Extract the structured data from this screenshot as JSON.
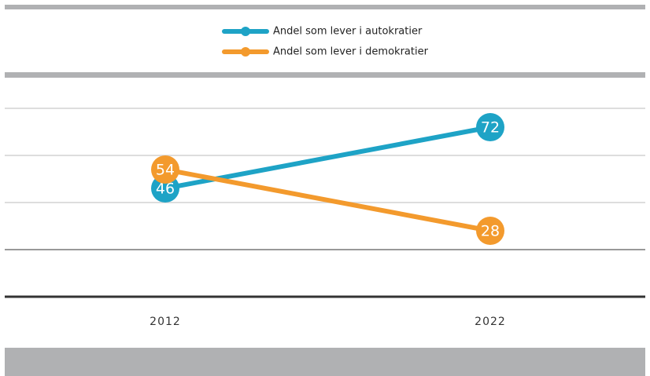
{
  "chart_data": {
    "type": "line",
    "categories": [
      "2012",
      "2022"
    ],
    "series": [
      {
        "name": "Andel som lever i autokratier",
        "color": "#1ea3c6",
        "values": [
          46,
          72
        ]
      },
      {
        "name": "Andel som lever i demokratier",
        "color": "#f39a2d",
        "values": [
          54,
          28
        ]
      }
    ],
    "ylim": [
      0,
      80
    ],
    "yticks": [
      0,
      20,
      40,
      60,
      80
    ],
    "grid": true,
    "legend": "top"
  }
}
